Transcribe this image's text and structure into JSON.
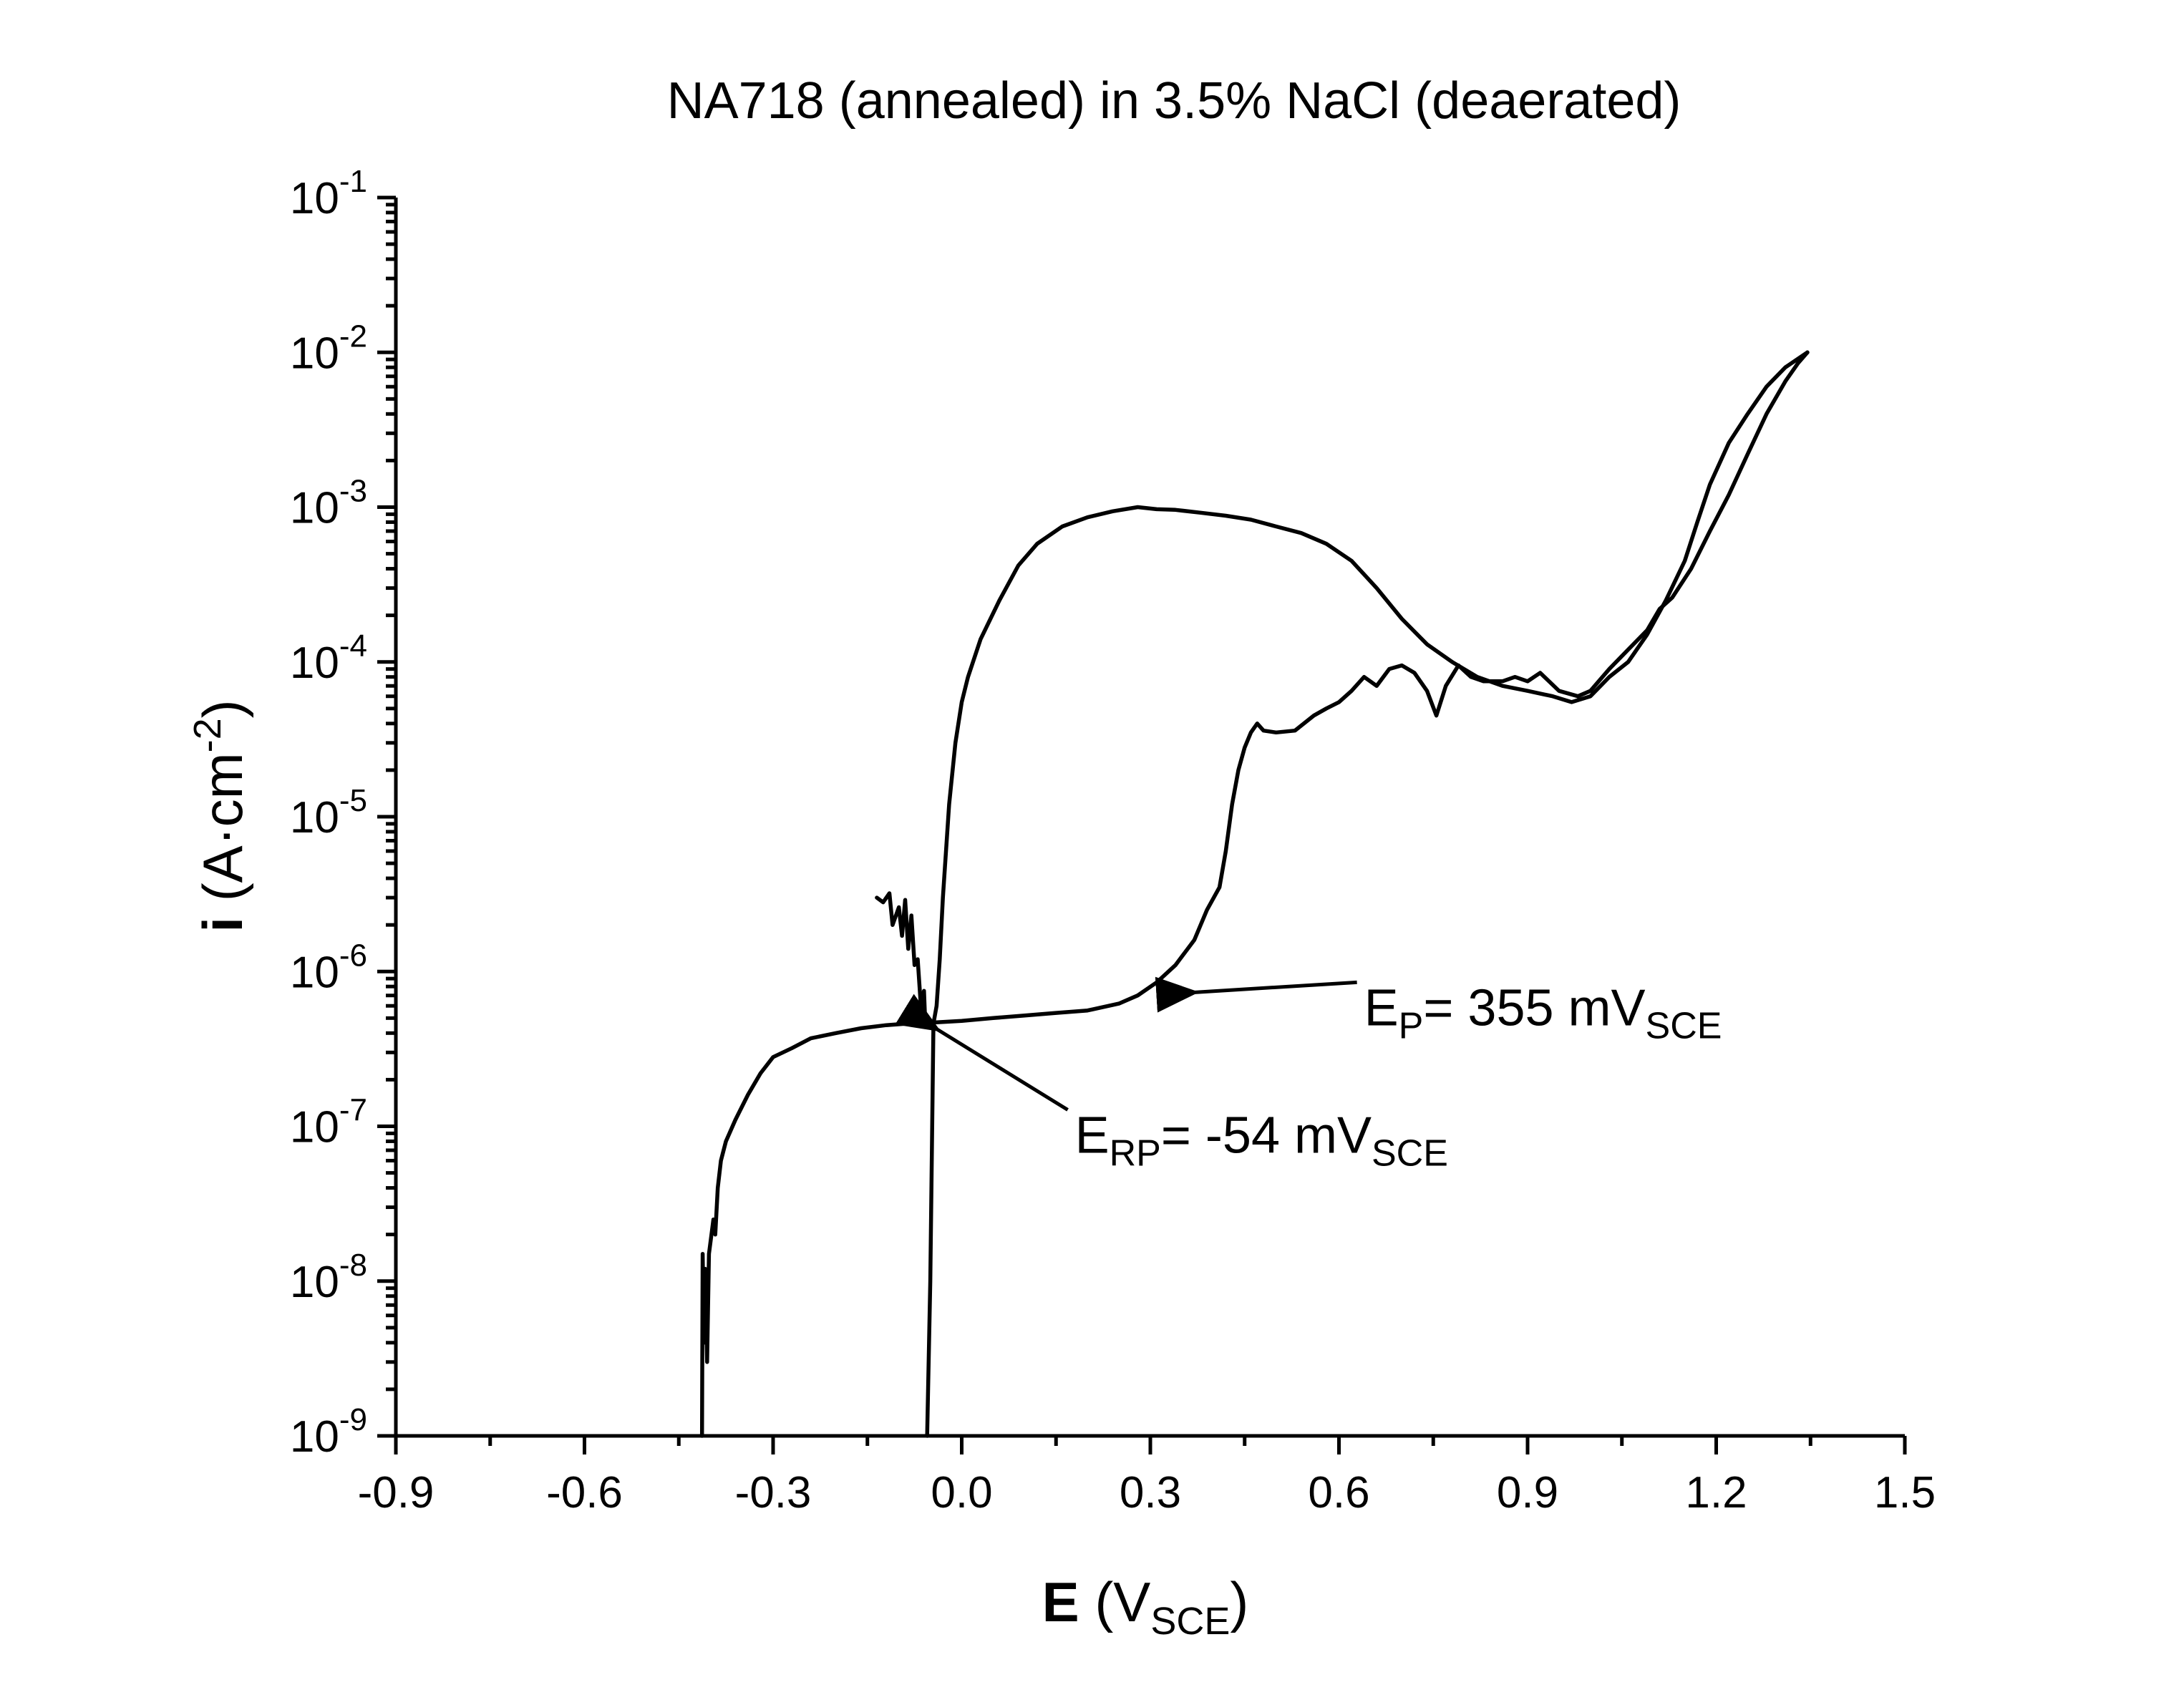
{
  "chart_data": {
    "type": "line",
    "title": "NA718 (annealed) in 3.5% NaCl (deaerated)",
    "xlabel": {
      "bold": "E",
      "pre": " (V",
      "sub": "SCE",
      "post": ")"
    },
    "ylabel": {
      "bold": "i",
      "pre": " (A·cm",
      "sup": "-2",
      "post": ")"
    },
    "xlim": [
      -0.9,
      1.5
    ],
    "ylim": [
      1e-09,
      0.1
    ],
    "yscale": "log",
    "x_ticks": [
      "-0.9",
      "-0.6",
      "-0.3",
      "0.0",
      "0.3",
      "0.6",
      "0.9",
      "1.2",
      "1.5"
    ],
    "y_ticks": [
      {
        "base": "10",
        "exp": "-1"
      },
      {
        "base": "10",
        "exp": "-2"
      },
      {
        "base": "10",
        "exp": "-3"
      },
      {
        "base": "10",
        "exp": "-4"
      },
      {
        "base": "10",
        "exp": "-5"
      },
      {
        "base": "10",
        "exp": "-6"
      },
      {
        "base": "10",
        "exp": "-7"
      },
      {
        "base": "10",
        "exp": "-8"
      },
      {
        "base": "10",
        "exp": "-9"
      }
    ],
    "grid": false,
    "legend": "none",
    "series": [
      {
        "direction": "forward",
        "x": [
          -0.413,
          -0.412,
          -0.41,
          -0.408,
          -0.405,
          -0.402,
          -0.398,
          -0.395,
          -0.392,
          -0.388,
          -0.383,
          -0.375,
          -0.36,
          -0.34,
          -0.32,
          -0.3,
          -0.27,
          -0.24,
          -0.2,
          -0.16,
          -0.12,
          -0.09,
          -0.07,
          -0.055,
          -0.04,
          0.0,
          0.05,
          0.1,
          0.15,
          0.2,
          0.25,
          0.28,
          0.31,
          0.34,
          0.37,
          0.39,
          0.41,
          0.42,
          0.43,
          0.44,
          0.45,
          0.46,
          0.47,
          0.48,
          0.5,
          0.53,
          0.56,
          0.58,
          0.6,
          0.62,
          0.64,
          0.66,
          0.68,
          0.7,
          0.72,
          0.74,
          0.755,
          0.77,
          0.79,
          0.81,
          0.83,
          0.86,
          0.88,
          0.9,
          0.92,
          0.95,
          0.98,
          1.0,
          1.03,
          1.06,
          1.09,
          1.11,
          1.13,
          1.16,
          1.19,
          1.22,
          1.25,
          1.28,
          1.31,
          1.33,
          1.345
        ],
        "y": [
          1e-09,
          1.5e-08,
          4e-09,
          1.2e-08,
          3e-09,
          1.5e-08,
          2e-08,
          2.5e-08,
          2e-08,
          4e-08,
          6e-08,
          8e-08,
          1.1e-07,
          1.6e-07,
          2.2e-07,
          2.8e-07,
          3.2e-07,
          3.7e-07,
          4e-07,
          4.3e-07,
          4.5e-07,
          4.6e-07,
          4.6e-07,
          4.6e-07,
          4.7e-07,
          4.8e-07,
          5e-07,
          5.2e-07,
          5.4e-07,
          5.6e-07,
          6.2e-07,
          7e-07,
          8.5e-07,
          1.1e-06,
          1.6e-06,
          2.5e-06,
          3.5e-06,
          6e-06,
          1.2e-05,
          2e-05,
          2.8e-05,
          3.5e-05,
          4e-05,
          3.6e-05,
          3.5e-05,
          3.6e-05,
          4.5e-05,
          5e-05,
          5.5e-05,
          6.5e-05,
          8e-05,
          7e-05,
          9e-05,
          9.5e-05,
          8.5e-05,
          6.5e-05,
          4.5e-05,
          7e-05,
          9.5e-05,
          8e-05,
          7.5e-05,
          7.5e-05,
          8e-05,
          7.5e-05,
          8.5e-05,
          6.5e-05,
          6e-05,
          6.5e-05,
          9e-05,
          0.00012,
          0.00016,
          0.00022,
          0.00026,
          0.0004,
          0.0007,
          0.0012,
          0.0022,
          0.004,
          0.0065,
          0.0085,
          0.01
        ]
      },
      {
        "direction": "reverse",
        "x": [
          1.345,
          1.31,
          1.28,
          1.25,
          1.22,
          1.19,
          1.17,
          1.15,
          1.12,
          1.09,
          1.06,
          1.03,
          1.0,
          0.97,
          0.94,
          0.9,
          0.86,
          0.82,
          0.78,
          0.74,
          0.7,
          0.66,
          0.62,
          0.58,
          0.54,
          0.5,
          0.46,
          0.42,
          0.38,
          0.34,
          0.31,
          0.28,
          0.24,
          0.2,
          0.16,
          0.12,
          0.09,
          0.06,
          0.03,
          0.01,
          0.0,
          -0.01,
          -0.02,
          -0.03,
          -0.035,
          -0.04,
          -0.045,
          -0.05,
          -0.055
        ],
        "y": [
          0.01,
          0.008,
          0.006,
          0.004,
          0.0026,
          0.0014,
          0.0008,
          0.00045,
          0.00025,
          0.00015,
          0.0001,
          8e-05,
          6e-05,
          5.5e-05,
          6e-05,
          6.5e-05,
          7e-05,
          8e-05,
          0.0001,
          0.00013,
          0.00019,
          0.0003,
          0.00045,
          0.00058,
          0.00068,
          0.00075,
          0.00083,
          0.00088,
          0.00092,
          0.00096,
          0.00097,
          0.001,
          0.00094,
          0.00086,
          0.00075,
          0.00058,
          0.00042,
          0.00025,
          0.00014,
          8e-05,
          5.5e-05,
          3e-05,
          1.2e-05,
          3e-06,
          1.2e-06,
          6e-07,
          4.6e-07,
          1e-08,
          1e-09
        ]
      },
      {
        "direction": "initial",
        "x": [
          -0.135,
          -0.125,
          -0.115,
          -0.11,
          -0.1,
          -0.095,
          -0.09,
          -0.085,
          -0.08,
          -0.075,
          -0.07,
          -0.065,
          -0.06,
          -0.058
        ],
        "y": [
          3e-06,
          2.8e-06,
          3.2e-06,
          2e-06,
          2.6e-06,
          1.7e-06,
          2.9e-06,
          1.4e-06,
          2.3e-06,
          1.1e-06,
          1.2e-06,
          6e-07,
          7.5e-07,
          4.6e-07
        ]
      }
    ],
    "annotations": [
      {
        "main": "E",
        "sub": "P",
        "rest": "= 355 mV",
        "sub2": "SCE",
        "text_x": 0.64,
        "text_y": 5e-07,
        "arrow_to_x": 0.355,
        "arrow_to_y": 7.8e-07
      },
      {
        "main": "E",
        "sub": "RP",
        "rest": "= -54 mV",
        "sub2": "SCE",
        "text_x": 0.18,
        "text_y": 7.5e-08,
        "arrow_to_x": -0.054,
        "arrow_to_y": 4.6e-07
      }
    ]
  }
}
